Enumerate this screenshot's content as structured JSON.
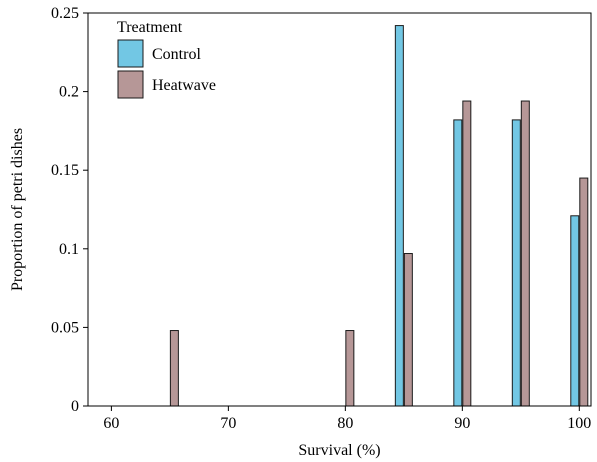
{
  "chart_data": {
    "type": "bar",
    "title": "",
    "xlabel": "Survival (%)",
    "ylabel": "Proportion of petri dishes",
    "xlim": [
      58,
      101
    ],
    "ylim": [
      0,
      0.25
    ],
    "x_ticks": [
      60,
      70,
      80,
      90,
      100
    ],
    "x_tick_labels": [
      "60",
      "70",
      "80",
      "90",
      "100"
    ],
    "y_ticks": [
      0,
      0.05,
      0.1,
      0.15,
      0.2,
      0.25
    ],
    "y_tick_labels": [
      "0",
      "0.05",
      "0.1",
      "0.15",
      "0.2",
      "0.25"
    ],
    "grid": false,
    "legend": {
      "title": "Treatment",
      "position": "top-left"
    },
    "series": [
      {
        "name": "Control",
        "color": "#72c7e4",
        "points": [
          {
            "x": 85,
            "y": 0.242
          },
          {
            "x": 90,
            "y": 0.182
          },
          {
            "x": 95,
            "y": 0.182
          },
          {
            "x": 100,
            "y": 0.121
          }
        ]
      },
      {
        "name": "Heatwave",
        "color": "#b69797",
        "points": [
          {
            "x": 65,
            "y": 0.048
          },
          {
            "x": 80,
            "y": 0.048
          },
          {
            "x": 85,
            "y": 0.097
          },
          {
            "x": 90,
            "y": 0.194
          },
          {
            "x": 95,
            "y": 0.194
          },
          {
            "x": 100,
            "y": 0.145
          }
        ]
      }
    ]
  }
}
